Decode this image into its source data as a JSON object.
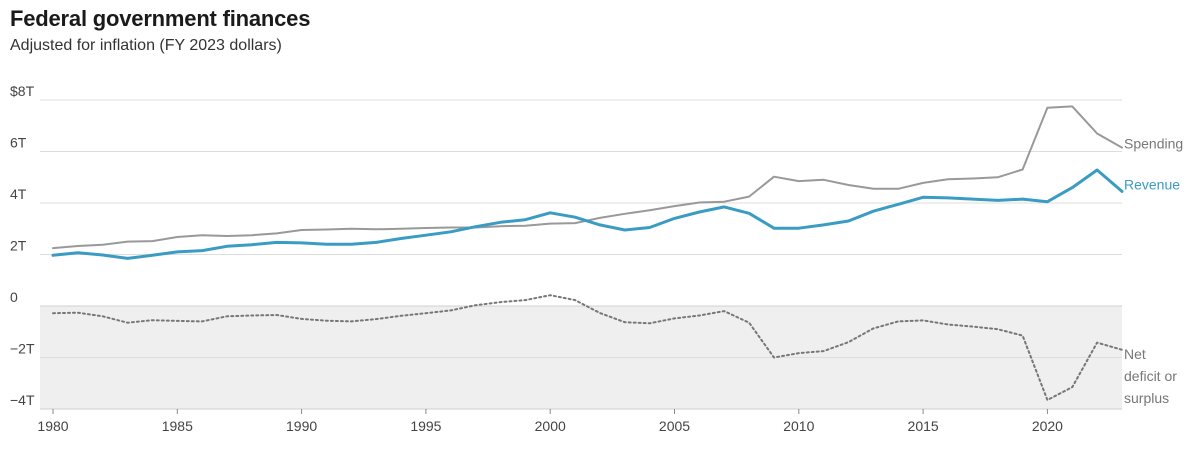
{
  "header": {
    "title": "Federal government finances",
    "subtitle": "Adjusted for inflation (FY 2023 dollars)"
  },
  "chart_data": {
    "type": "line",
    "title": "Federal government finances",
    "subtitle": "Adjusted for inflation (FY 2023 dollars)",
    "xlabel": "",
    "ylabel": "",
    "x": [
      1980,
      1981,
      1982,
      1983,
      1984,
      1985,
      1986,
      1987,
      1988,
      1989,
      1990,
      1991,
      1992,
      1993,
      1994,
      1995,
      1996,
      1997,
      1998,
      1999,
      2000,
      2001,
      2002,
      2003,
      2004,
      2005,
      2006,
      2007,
      2008,
      2009,
      2010,
      2011,
      2012,
      2013,
      2014,
      2015,
      2016,
      2017,
      2018,
      2019,
      2020,
      2021,
      2022,
      2023
    ],
    "xlim": [
      1980,
      2023
    ],
    "ylim": [
      -4,
      8
    ],
    "x_ticks": [
      {
        "value": 1980,
        "label": "1980"
      },
      {
        "value": 1985,
        "label": "1985"
      },
      {
        "value": 1990,
        "label": "1990"
      },
      {
        "value": 1995,
        "label": "1995"
      },
      {
        "value": 2000,
        "label": "2000"
      },
      {
        "value": 2005,
        "label": "2005"
      },
      {
        "value": 2010,
        "label": "2010"
      },
      {
        "value": 2015,
        "label": "2015"
      },
      {
        "value": 2020,
        "label": "2020"
      }
    ],
    "y_ticks": [
      {
        "value": 8,
        "label": "$8T"
      },
      {
        "value": 6,
        "label": "6T"
      },
      {
        "value": 4,
        "label": "4T"
      },
      {
        "value": 2,
        "label": "2T"
      },
      {
        "value": 0,
        "label": "0"
      },
      {
        "value": -2,
        "label": "−2T"
      },
      {
        "value": -4,
        "label": "−4T"
      }
    ],
    "grid": true,
    "shaded_negative_region": true,
    "series": [
      {
        "name": "Spending",
        "color": "#999999",
        "style": "solid",
        "values": [
          2.25,
          2.33,
          2.38,
          2.5,
          2.52,
          2.68,
          2.75,
          2.72,
          2.75,
          2.82,
          2.95,
          2.97,
          3.0,
          2.98,
          3.0,
          3.03,
          3.05,
          3.05,
          3.1,
          3.12,
          3.2,
          3.22,
          3.42,
          3.58,
          3.72,
          3.88,
          4.02,
          4.05,
          4.25,
          5.02,
          4.85,
          4.9,
          4.7,
          4.55,
          4.55,
          4.78,
          4.92,
          4.95,
          5.0,
          5.3,
          7.7,
          7.75,
          6.7,
          6.15
        ]
      },
      {
        "name": "Revenue",
        "color": "#3a9cc3",
        "style": "solid",
        "values": [
          1.97,
          2.07,
          1.98,
          1.85,
          1.97,
          2.1,
          2.15,
          2.32,
          2.38,
          2.47,
          2.45,
          2.4,
          2.4,
          2.47,
          2.62,
          2.75,
          2.88,
          3.08,
          3.25,
          3.35,
          3.62,
          3.45,
          3.15,
          2.95,
          3.05,
          3.4,
          3.65,
          3.85,
          3.6,
          3.02,
          3.02,
          3.15,
          3.3,
          3.68,
          3.95,
          4.22,
          4.2,
          4.15,
          4.1,
          4.15,
          4.05,
          4.6,
          5.28,
          4.45
        ]
      },
      {
        "name": "Net deficit or surplus",
        "label_lines": [
          "Net",
          "deficit or",
          "surplus"
        ],
        "color": "#777777",
        "style": "dotted",
        "values": [
          -0.28,
          -0.26,
          -0.4,
          -0.65,
          -0.55,
          -0.58,
          -0.6,
          -0.4,
          -0.37,
          -0.35,
          -0.5,
          -0.57,
          -0.6,
          -0.51,
          -0.38,
          -0.28,
          -0.17,
          0.03,
          0.15,
          0.23,
          0.42,
          0.23,
          -0.27,
          -0.63,
          -0.67,
          -0.48,
          -0.37,
          -0.2,
          -0.65,
          -2.0,
          -1.83,
          -1.75,
          -1.4,
          -0.87,
          -0.6,
          -0.56,
          -0.72,
          -0.8,
          -0.9,
          -1.15,
          -3.65,
          -3.15,
          -1.42,
          -1.7
        ]
      }
    ],
    "series_label_positions": "right"
  }
}
